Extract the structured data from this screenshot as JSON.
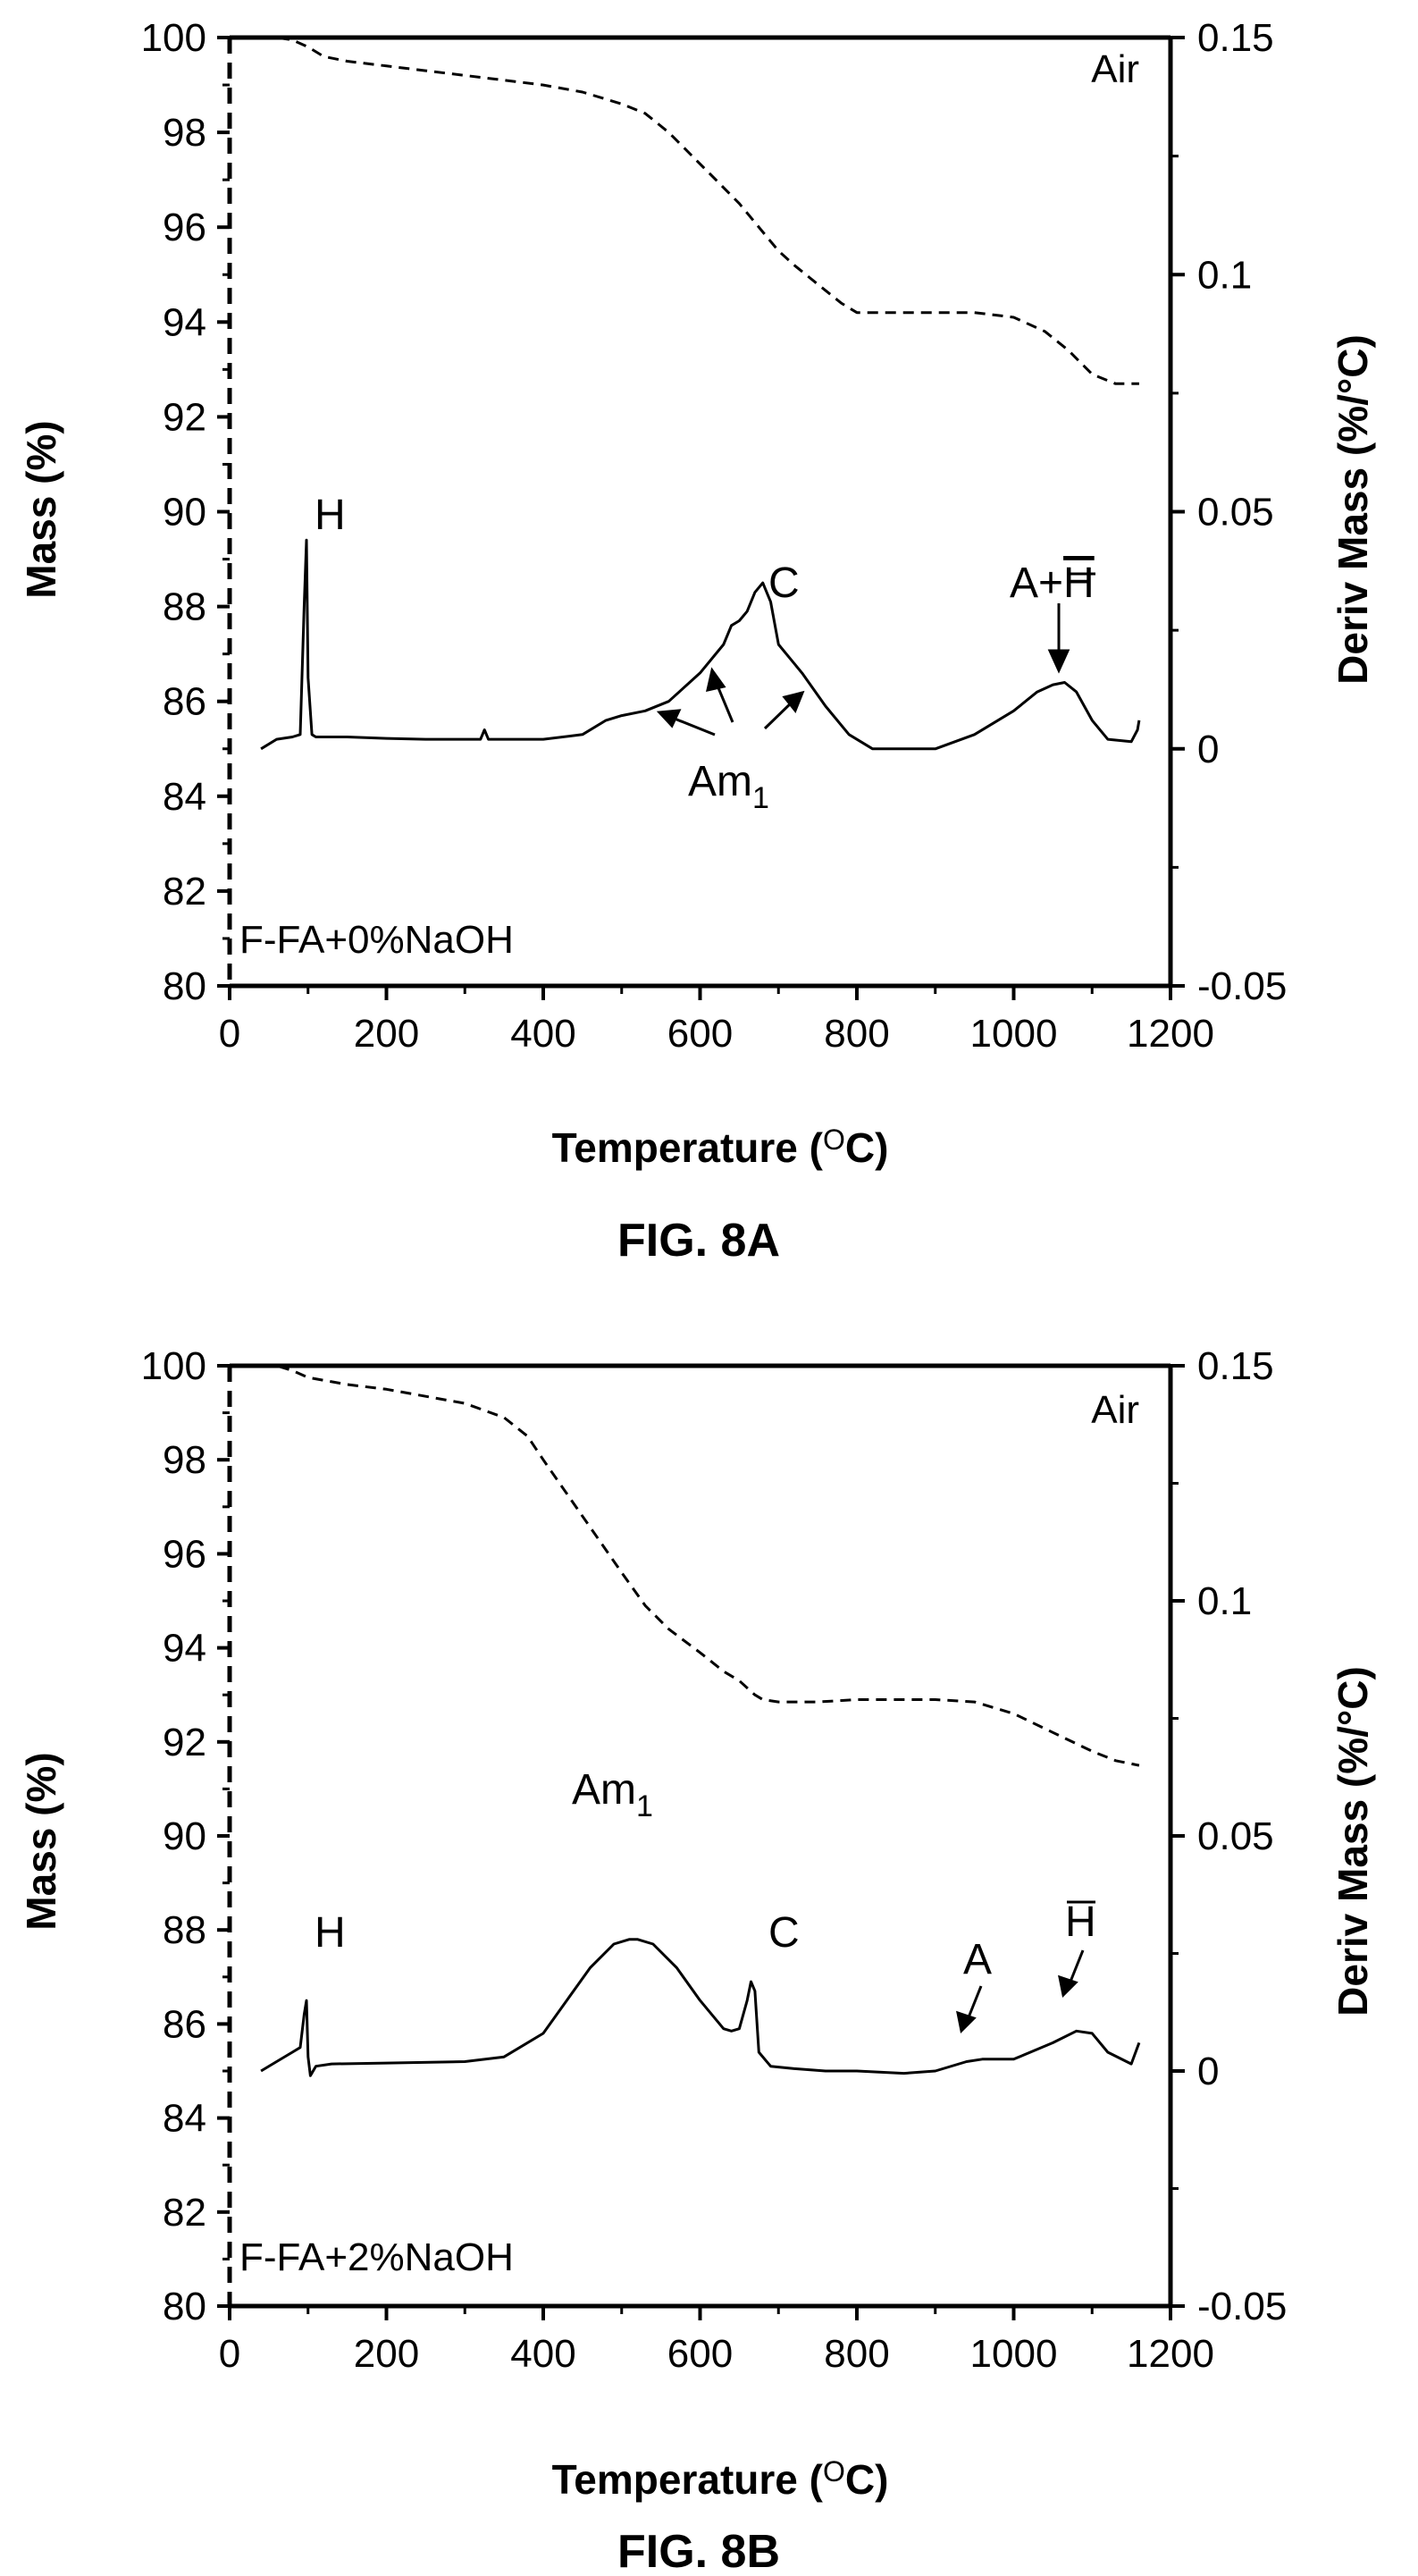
{
  "chart_data": [
    {
      "type": "line",
      "figure_label": "FIG. 8A",
      "sample_label": "F-FA+0%NaOH",
      "atmosphere_label": "Air",
      "xlabel": "Temperature (",
      "xlabel_unit": "O",
      "xlabel_end": "C)",
      "ylabel": "Mass (%)",
      "y2label": "Deriv Mass (%/°C)",
      "xlim": [
        0,
        1200
      ],
      "ylim": [
        80,
        100
      ],
      "y2lim": [
        -0.05,
        0.15
      ],
      "xticks": [
        "0",
        "200",
        "400",
        "600",
        "800",
        "1000",
        "1200"
      ],
      "yticks": [
        "80",
        "82",
        "84",
        "86",
        "88",
        "90",
        "92",
        "94",
        "96",
        "98",
        "100"
      ],
      "y2ticks": [
        "-0.05",
        "0",
        "0.05",
        "0.1",
        "0.15"
      ],
      "series": [
        {
          "style": "dashed",
          "axis": "left",
          "x": [
            40,
            60,
            80,
            100,
            120,
            150,
            200,
            250,
            300,
            350,
            400,
            450,
            500,
            530,
            560,
            590,
            620,
            650,
            680,
            700,
            720,
            750,
            780,
            800,
            850,
            900,
            950,
            1000,
            1040,
            1070,
            1100,
            1130,
            1160
          ],
          "y": [
            100,
            100,
            99.95,
            99.8,
            99.6,
            99.5,
            99.4,
            99.3,
            99.2,
            99.1,
            99.0,
            98.85,
            98.6,
            98.4,
            98.0,
            97.5,
            97.0,
            96.5,
            95.9,
            95.5,
            95.2,
            94.8,
            94.4,
            94.2,
            94.2,
            94.2,
            94.2,
            94.1,
            93.8,
            93.4,
            92.9,
            92.7,
            92.7
          ]
        },
        {
          "style": "solid",
          "axis": "right",
          "x": [
            40,
            60,
            80,
            90,
            95,
            98,
            100,
            105,
            110,
            150,
            200,
            250,
            300,
            320,
            325,
            330,
            350,
            400,
            450,
            480,
            500,
            530,
            560,
            600,
            630,
            640,
            650,
            660,
            670,
            680,
            690,
            700,
            710,
            730,
            760,
            790,
            820,
            850,
            900,
            950,
            1000,
            1030,
            1050,
            1065,
            1080,
            1100,
            1120,
            1150,
            1158,
            1160
          ],
          "y": [
            0.0,
            0.002,
            0.0025,
            0.003,
            0.03,
            0.044,
            0.015,
            0.003,
            0.0025,
            0.0025,
            0.0022,
            0.002,
            0.002,
            0.002,
            0.004,
            0.002,
            0.002,
            0.002,
            0.003,
            0.006,
            0.007,
            0.008,
            0.01,
            0.016,
            0.022,
            0.026,
            0.027,
            0.029,
            0.033,
            0.035,
            0.031,
            0.022,
            0.02,
            0.016,
            0.009,
            0.003,
            0.0,
            0.0,
            0.0,
            0.003,
            0.008,
            0.012,
            0.0135,
            0.014,
            0.012,
            0.006,
            0.002,
            0.0015,
            0.004,
            0.006
          ]
        }
      ],
      "annotations": [
        {
          "text": "H"
        },
        {
          "text": "C"
        },
        {
          "text": "Am",
          "sub": "1"
        },
        {
          "text": "A+",
          "overlined": "H"
        }
      ]
    },
    {
      "type": "line",
      "figure_label": "FIG. 8B",
      "sample_label": "F-FA+2%NaOH",
      "atmosphere_label": "Air",
      "xlabel": "Temperature (",
      "xlabel_unit": "O",
      "xlabel_end": "C)",
      "ylabel": "Mass (%)",
      "y2label": "Deriv Mass (%/°C)",
      "xlim": [
        0,
        1200
      ],
      "ylim": [
        80,
        100
      ],
      "y2lim": [
        -0.05,
        0.15
      ],
      "xticks": [
        "0",
        "200",
        "400",
        "600",
        "800",
        "1000",
        "1200"
      ],
      "yticks": [
        "80",
        "82",
        "84",
        "86",
        "88",
        "90",
        "92",
        "94",
        "96",
        "98",
        "100"
      ],
      "y2ticks": [
        "-0.05",
        "0",
        "0.05",
        "0.1",
        "0.15"
      ],
      "series": [
        {
          "style": "dashed",
          "axis": "left",
          "x": [
            40,
            60,
            80,
            100,
            150,
            200,
            250,
            300,
            350,
            380,
            400,
            450,
            500,
            530,
            560,
            600,
            630,
            650,
            670,
            680,
            700,
            750,
            800,
            850,
            900,
            950,
            1000,
            1050,
            1100,
            1130,
            1160
          ],
          "y": [
            100,
            100,
            99.9,
            99.75,
            99.6,
            99.5,
            99.35,
            99.2,
            98.9,
            98.5,
            98.0,
            96.8,
            95.6,
            94.9,
            94.4,
            93.9,
            93.5,
            93.3,
            93.0,
            92.9,
            92.85,
            92.85,
            92.9,
            92.9,
            92.9,
            92.85,
            92.6,
            92.2,
            91.8,
            91.6,
            91.5
          ]
        },
        {
          "style": "solid",
          "axis": "right",
          "x": [
            40,
            60,
            80,
            90,
            95,
            98,
            100,
            103,
            110,
            130,
            200,
            300,
            350,
            400,
            430,
            460,
            490,
            510,
            520,
            540,
            570,
            600,
            630,
            640,
            650,
            660,
            665,
            670,
            675,
            690,
            720,
            760,
            800,
            860,
            900,
            940,
            960,
            1000,
            1050,
            1080,
            1100,
            1120,
            1150,
            1160
          ],
          "y": [
            0.0,
            0.002,
            0.004,
            0.005,
            0.012,
            0.015,
            0.003,
            -0.001,
            0.001,
            0.0015,
            0.0017,
            0.002,
            0.003,
            0.008,
            0.015,
            0.022,
            0.027,
            0.028,
            0.028,
            0.027,
            0.022,
            0.015,
            0.009,
            0.0085,
            0.009,
            0.015,
            0.019,
            0.017,
            0.004,
            0.001,
            0.0005,
            0.0,
            0.0,
            -0.0005,
            0.0,
            0.002,
            0.0025,
            0.0025,
            0.006,
            0.0085,
            0.008,
            0.004,
            0.0015,
            0.006
          ]
        }
      ],
      "annotations": [
        {
          "text": "H"
        },
        {
          "text": "Am",
          "sub": "1"
        },
        {
          "text": "C"
        },
        {
          "text": "A"
        },
        {
          "overlined": "H"
        }
      ]
    }
  ]
}
